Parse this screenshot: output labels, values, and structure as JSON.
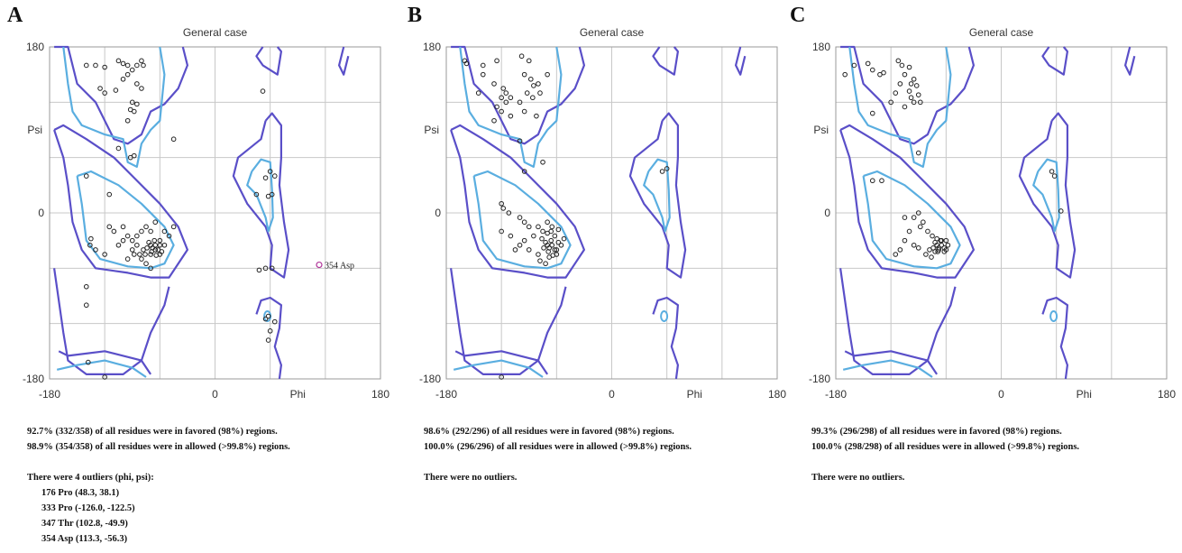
{
  "panels": [
    {
      "letter": "A",
      "title": "General case",
      "xlabel": "Phi",
      "ylabel": "Psi",
      "favored_text": "92.7% (332/358) of all residues were in favored (98%) regions.",
      "allowed_text": "98.9% (354/358) of all residues were in allowed (>99.8%) regions.",
      "outlier_header": "There were 4 outliers (phi, psi):",
      "outliers": [
        "176 Pro (48.3, 38.1)",
        "333 Pro (-126.0, -122.5)",
        "347 Thr (102.8, -49.9)",
        "354 Asp (113.3, -56.3)"
      ],
      "annotation": "354 Asp"
    },
    {
      "letter": "B",
      "title": "General case",
      "xlabel": "Phi",
      "ylabel": "Psi",
      "favored_text": "98.6% (292/296) of all residues were in favored (98%) regions.",
      "allowed_text": "100.0% (296/296) of all residues were in allowed (>99.8%) regions.",
      "outlier_header": "There were no outliers.",
      "outliers": []
    },
    {
      "letter": "C",
      "title": "General case",
      "xlabel": "Phi",
      "ylabel": "Psi",
      "favored_text": "99.3% (296/298) of all residues were in favored (98%) regions.",
      "allowed_text": "100.0% (298/298) of all residues were in allowed (>99.8%) regions.",
      "outlier_header": "There were no outliers.",
      "outliers": []
    }
  ],
  "chart_data": [
    {
      "type": "scatter",
      "title": "General case",
      "xlabel": "Phi",
      "ylabel": "Psi",
      "xlim": [
        -180,
        180
      ],
      "ylim": [
        -180,
        180
      ],
      "x_ticks": [
        "-180",
        "0",
        "180"
      ],
      "y_ticks": [
        "180",
        "0",
        "-180"
      ],
      "grid": true,
      "colors": {
        "favored_contour": "#5aaee0",
        "allowed_contour": "#5a4fc8",
        "points": "#222222",
        "outlier": "#b0359a"
      },
      "outliers": [
        {
          "label": "354 Asp",
          "phi": 113.3,
          "psi": -56.3
        }
      ],
      "points": [
        [
          -140,
          160
        ],
        [
          -130,
          160
        ],
        [
          -120,
          158
        ],
        [
          -105,
          165
        ],
        [
          -100,
          162
        ],
        [
          -95,
          160
        ],
        [
          -90,
          155
        ],
        [
          -85,
          160
        ],
        [
          -80,
          165
        ],
        [
          -78,
          160
        ],
        [
          -95,
          150
        ],
        [
          -100,
          145
        ],
        [
          -125,
          135
        ],
        [
          -120,
          130
        ],
        [
          -108,
          133
        ],
        [
          -85,
          140
        ],
        [
          -80,
          135
        ],
        [
          -88,
          110
        ],
        [
          -92,
          112
        ],
        [
          -90,
          120
        ],
        [
          -85,
          118
        ],
        [
          -95,
          100
        ],
        [
          -105,
          70
        ],
        [
          -92,
          60
        ],
        [
          -88,
          62
        ],
        [
          -140,
          40
        ],
        [
          -115,
          20
        ],
        [
          -45,
          80
        ],
        [
          52,
          132
        ],
        [
          60,
          45
        ],
        [
          65,
          40
        ],
        [
          55,
          38
        ],
        [
          58,
          18
        ],
        [
          45,
          20
        ],
        [
          62,
          20
        ],
        [
          -75,
          -15
        ],
        [
          -70,
          -20
        ],
        [
          -80,
          -20
        ],
        [
          -60,
          -30
        ],
        [
          -55,
          -35
        ],
        [
          -50,
          -25
        ],
        [
          -85,
          -35
        ],
        [
          -90,
          -40
        ],
        [
          -65,
          -40
        ],
        [
          -60,
          -45
        ],
        [
          -70,
          -45
        ],
        [
          -75,
          -55
        ],
        [
          -80,
          -50
        ],
        [
          -95,
          -50
        ],
        [
          -100,
          -30
        ],
        [
          -120,
          -45
        ],
        [
          -100,
          -15
        ],
        [
          -110,
          -20
        ],
        [
          -115,
          -15
        ],
        [
          -85,
          -25
        ],
        [
          -90,
          -30
        ],
        [
          -105,
          -35
        ],
        [
          -95,
          -25
        ],
        [
          -65,
          -10
        ],
        [
          -55,
          -20
        ],
        [
          -45,
          -15
        ],
        [
          -70,
          -60
        ],
        [
          -78,
          -40
        ],
        [
          -82,
          -45
        ],
        [
          -88,
          -45
        ],
        [
          -135,
          -28
        ],
        [
          -136,
          -35
        ],
        [
          -130,
          -40
        ],
        [
          -140,
          -80
        ],
        [
          -140,
          -100
        ],
        [
          -70,
          -35
        ],
        [
          -65,
          -35
        ],
        [
          -72,
          -32
        ],
        [
          -68,
          -38
        ],
        [
          -62,
          -40
        ],
        [
          -66,
          -30
        ],
        [
          -74,
          -38
        ],
        [
          -69,
          -42
        ],
        [
          -60,
          -35
        ],
        [
          -76,
          -45
        ],
        [
          -58,
          -42
        ],
        [
          -64,
          -46
        ],
        [
          55,
          -60
        ],
        [
          48,
          -62
        ],
        [
          62,
          -60
        ],
        [
          58,
          -112
        ],
        [
          65,
          -118
        ],
        [
          55,
          -115
        ],
        [
          60,
          -128
        ],
        [
          58,
          -138
        ],
        [
          -120,
          -178
        ],
        [
          -138,
          -162
        ]
      ]
    },
    {
      "type": "scatter",
      "title": "General case",
      "xlabel": "Phi",
      "ylabel": "Psi",
      "xlim": [
        -180,
        180
      ],
      "ylim": [
        -180,
        180
      ],
      "x_ticks": [
        "-180",
        "0",
        "180"
      ],
      "y_ticks": [
        "180",
        "0",
        "-180"
      ],
      "grid": true,
      "colors": {
        "favored_contour": "#5aaee0",
        "allowed_contour": "#5a4fc8",
        "points": "#222222",
        "outlier": "#b0359a"
      },
      "points": [
        [
          -160,
          165
        ],
        [
          -158,
          162
        ],
        [
          -140,
          160
        ],
        [
          -125,
          165
        ],
        [
          -140,
          150
        ],
        [
          -145,
          130
        ],
        [
          -128,
          140
        ],
        [
          -118,
          135
        ],
        [
          -120,
          125
        ],
        [
          -115,
          130
        ],
        [
          -110,
          125
        ],
        [
          -125,
          115
        ],
        [
          -120,
          110
        ],
        [
          -115,
          120
        ],
        [
          -110,
          105
        ],
        [
          -128,
          100
        ],
        [
          -98,
          170
        ],
        [
          -90,
          165
        ],
        [
          -95,
          150
        ],
        [
          -88,
          145
        ],
        [
          -80,
          140
        ],
        [
          -85,
          138
        ],
        [
          -92,
          130
        ],
        [
          -78,
          130
        ],
        [
          -86,
          125
        ],
        [
          -100,
          120
        ],
        [
          -95,
          110
        ],
        [
          -100,
          78
        ],
        [
          -82,
          105
        ],
        [
          -70,
          150
        ],
        [
          -75,
          55
        ],
        [
          -95,
          45
        ],
        [
          55,
          45
        ],
        [
          60,
          48
        ],
        [
          -120,
          10
        ],
        [
          -118,
          5
        ],
        [
          -112,
          0
        ],
        [
          -100,
          -5
        ],
        [
          -95,
          -10
        ],
        [
          -90,
          -15
        ],
        [
          -110,
          -25
        ],
        [
          -120,
          -20
        ],
        [
          -80,
          -15
        ],
        [
          -75,
          -20
        ],
        [
          -70,
          -10
        ],
        [
          -65,
          -15
        ],
        [
          -85,
          -25
        ],
        [
          -95,
          -30
        ],
        [
          -100,
          -35
        ],
        [
          -105,
          -40
        ],
        [
          -90,
          -40
        ],
        [
          -80,
          -45
        ],
        [
          -78,
          -52
        ],
        [
          -72,
          -55
        ],
        [
          -68,
          -48
        ],
        [
          -60,
          -45
        ],
        [
          -55,
          -35
        ],
        [
          -52,
          -28
        ],
        [
          -62,
          -25
        ],
        [
          -66,
          -20
        ],
        [
          -58,
          -18
        ],
        [
          -70,
          -35
        ],
        [
          -65,
          -35
        ],
        [
          -72,
          -32
        ],
        [
          -68,
          -38
        ],
        [
          -62,
          -40
        ],
        [
          -66,
          -30
        ],
        [
          -74,
          -38
        ],
        [
          -69,
          -42
        ],
        [
          -60,
          -40
        ],
        [
          -76,
          -28
        ],
        [
          -58,
          -32
        ],
        [
          -64,
          -46
        ],
        [
          -70,
          -22
        ],
        [
          -120,
          -178
        ]
      ]
    },
    {
      "type": "scatter",
      "title": "General case",
      "xlabel": "Phi",
      "ylabel": "Psi",
      "xlim": [
        -180,
        180
      ],
      "ylim": [
        -180,
        180
      ],
      "x_ticks": [
        "-180",
        "0",
        "180"
      ],
      "y_ticks": [
        "180",
        "0",
        "-180"
      ],
      "grid": true,
      "colors": {
        "favored_contour": "#5aaee0",
        "allowed_contour": "#5a4fc8",
        "points": "#222222",
        "outlier": "#b0359a"
      },
      "points": [
        [
          -170,
          150
        ],
        [
          -160,
          160
        ],
        [
          -145,
          162
        ],
        [
          -140,
          155
        ],
        [
          -132,
          150
        ],
        [
          -128,
          152
        ],
        [
          -112,
          165
        ],
        [
          -108,
          160
        ],
        [
          -100,
          158
        ],
        [
          -105,
          150
        ],
        [
          -110,
          140
        ],
        [
          -98,
          140
        ],
        [
          -100,
          132
        ],
        [
          -95,
          145
        ],
        [
          -92,
          138
        ],
        [
          -98,
          125
        ],
        [
          -90,
          128
        ],
        [
          -88,
          120
        ],
        [
          -115,
          130
        ],
        [
          -120,
          120
        ],
        [
          -140,
          108
        ],
        [
          -105,
          115
        ],
        [
          -95,
          120
        ],
        [
          -90,
          65
        ],
        [
          -130,
          35
        ],
        [
          -140,
          35
        ],
        [
          -105,
          -5
        ],
        [
          -95,
          -5
        ],
        [
          -90,
          0
        ],
        [
          -85,
          -10
        ],
        [
          -88,
          -15
        ],
        [
          -100,
          -20
        ],
        [
          -105,
          -30
        ],
        [
          -95,
          -35
        ],
        [
          -90,
          -38
        ],
        [
          -110,
          -40
        ],
        [
          -115,
          -45
        ],
        [
          -80,
          -20
        ],
        [
          -75,
          -25
        ],
        [
          -70,
          -28
        ],
        [
          -65,
          -30
        ],
        [
          -60,
          -30
        ],
        [
          -58,
          -35
        ],
        [
          -62,
          -38
        ],
        [
          -68,
          -40
        ],
        [
          -72,
          -42
        ],
        [
          -78,
          -40
        ],
        [
          -82,
          -45
        ],
        [
          -76,
          -48
        ],
        [
          -70,
          -35
        ],
        [
          -65,
          -35
        ],
        [
          -72,
          -32
        ],
        [
          -68,
          -38
        ],
        [
          -62,
          -42
        ],
        [
          -66,
          -30
        ],
        [
          -74,
          -38
        ],
        [
          -69,
          -42
        ],
        [
          -60,
          -40
        ],
        [
          55,
          45
        ],
        [
          58,
          40
        ],
        [
          65,
          2
        ]
      ]
    }
  ]
}
